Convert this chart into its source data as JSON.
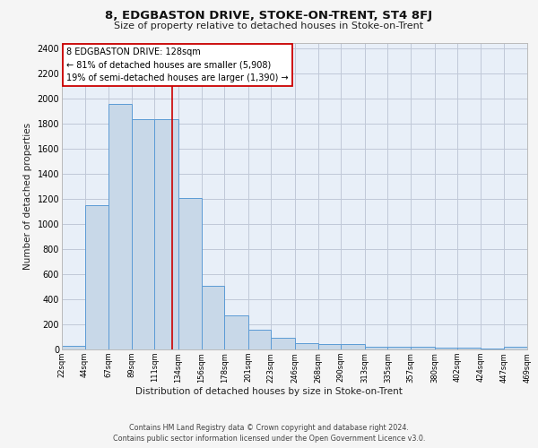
{
  "title": "8, EDGBASTON DRIVE, STOKE-ON-TRENT, ST4 8FJ",
  "subtitle": "Size of property relative to detached houses in Stoke-on-Trent",
  "xlabel": "Distribution of detached houses by size in Stoke-on-Trent",
  "ylabel": "Number of detached properties",
  "footer_line1": "Contains HM Land Registry data © Crown copyright and database right 2024.",
  "footer_line2": "Contains public sector information licensed under the Open Government Licence v3.0.",
  "annotation_line1": "8 EDGBASTON DRIVE: 128sqm",
  "annotation_line2": "← 81% of detached houses are smaller (5,908)",
  "annotation_line3": "19% of semi-detached houses are larger (1,390) →",
  "property_size": 128,
  "bar_left_edges": [
    22,
    44,
    67,
    89,
    111,
    134,
    156,
    178,
    201,
    223,
    246,
    268,
    290,
    313,
    335,
    357,
    380,
    402,
    424,
    447
  ],
  "bar_widths": [
    22,
    23,
    22,
    22,
    23,
    22,
    22,
    23,
    22,
    23,
    22,
    22,
    23,
    22,
    22,
    23,
    22,
    22,
    23,
    22
  ],
  "bar_heights": [
    30,
    1150,
    1960,
    1840,
    1840,
    1210,
    510,
    270,
    155,
    90,
    50,
    45,
    40,
    20,
    20,
    20,
    15,
    15,
    10,
    20
  ],
  "tick_labels": [
    "22sqm",
    "44sqm",
    "67sqm",
    "89sqm",
    "111sqm",
    "134sqm",
    "156sqm",
    "178sqm",
    "201sqm",
    "223sqm",
    "246sqm",
    "268sqm",
    "290sqm",
    "313sqm",
    "335sqm",
    "357sqm",
    "380sqm",
    "402sqm",
    "424sqm",
    "447sqm",
    "469sqm"
  ],
  "bar_color": "#c8d8e8",
  "bar_edge_color": "#5b9bd5",
  "grid_color": "#c0c8d8",
  "bg_color": "#e8eff8",
  "vline_color": "#cc0000",
  "vline_x": 128,
  "annotation_box_color": "#ffffff",
  "annotation_box_edge": "#cc0000",
  "ylim": [
    0,
    2450
  ],
  "yticks": [
    0,
    200,
    400,
    600,
    800,
    1000,
    1200,
    1400,
    1600,
    1800,
    2000,
    2200,
    2400
  ],
  "fig_bg": "#f5f5f5"
}
